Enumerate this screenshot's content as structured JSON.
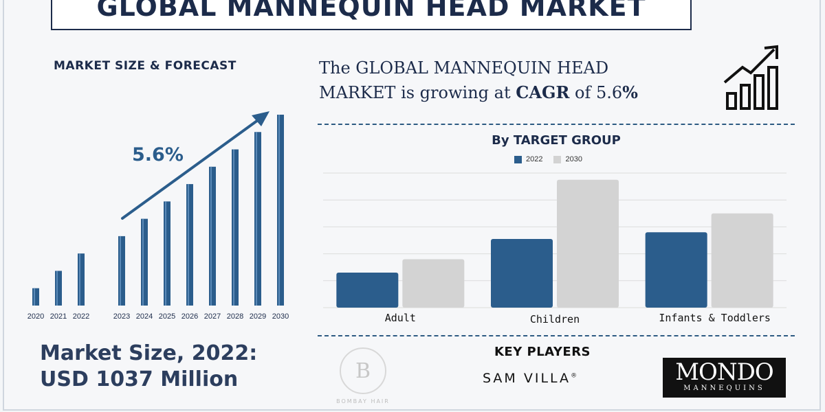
{
  "title": "GLOBAL MANNEQUIN HEAD MARKET",
  "left_subtitle": "MARKET SIZE & FORECAST",
  "market_size": {
    "line1": "Market Size, 2022:",
    "line2": "USD 1037 Million"
  },
  "headline": {
    "part1": "The GLOBAL MANNEQUIN HEAD",
    "part2": "MARKET is growing at ",
    "cagr_word": "CAGR",
    "part3": " of 5.6",
    "pct": "%"
  },
  "colors": {
    "navy": "#1c2b4a",
    "bar_blue": "#2b5d8c",
    "bar_grey": "#d3d3d3",
    "dash": "#2c5a82"
  },
  "icons": {
    "growth": "bar-chart-growth-arrow-icon"
  },
  "chart_data": [
    {
      "type": "bar",
      "title": "MARKET SIZE & FORECAST",
      "categories": [
        "2020",
        "2021",
        "2022",
        "2023",
        "2024",
        "2025",
        "2026",
        "2027",
        "2028",
        "2029",
        "2030"
      ],
      "values": [
        1,
        2,
        3,
        4,
        5,
        6,
        7,
        8,
        9,
        10,
        11
      ],
      "annotation": "5.6%",
      "trend_arrow": true,
      "gap_after": "2022",
      "ylim": [
        0,
        11
      ]
    },
    {
      "type": "bar",
      "title": "By TARGET GROUP",
      "categories": [
        "Adult",
        "Children",
        "Infants & Toddlers"
      ],
      "series": [
        {
          "name": "2022",
          "values": [
            26,
            51,
            56
          ]
        },
        {
          "name": "2030",
          "values": [
            36,
            95,
            70
          ]
        }
      ],
      "ylim": [
        0,
        100
      ],
      "grid": true,
      "legend": "top-center"
    }
  ],
  "key_players": {
    "title": "KEY PLAYERS",
    "bombay_initials": "B",
    "bombay_name": "BOMBAY HAIR",
    "sam_villa": "SAM VILLA",
    "sam_villa_mark": "®",
    "mondo_line1": "MONDO",
    "mondo_line2": "MANNEQUINS"
  }
}
